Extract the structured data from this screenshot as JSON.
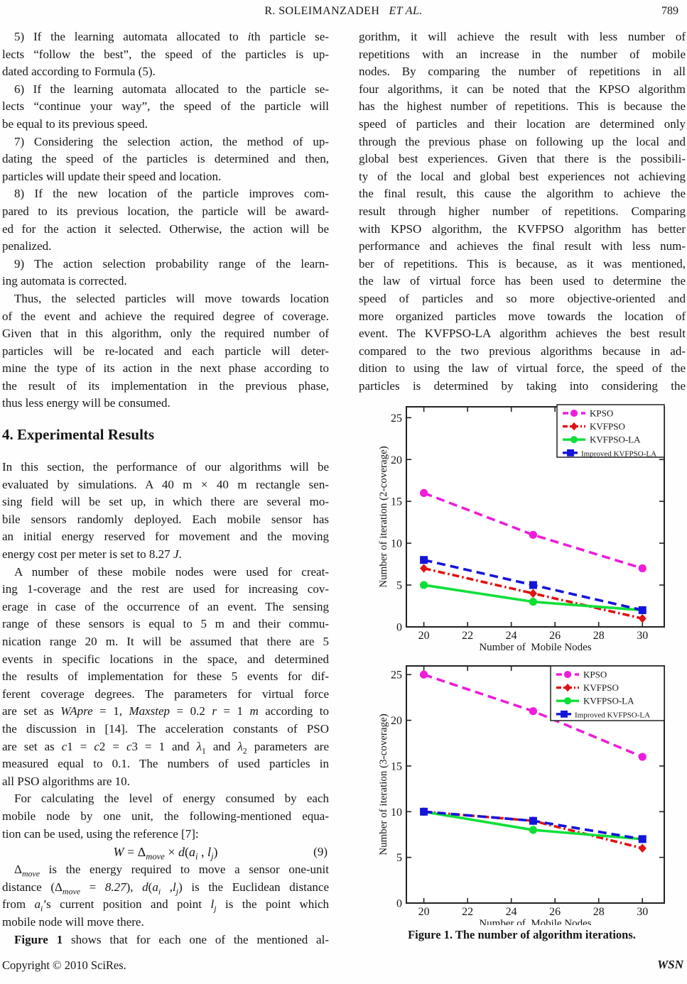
{
  "header": {
    "authors": "R. SOLEIMANZADEH",
    "et_al": "ET  AL.",
    "page_number": "789"
  },
  "footer": {
    "copyright": "Copyright © 2010 SciRes.",
    "journal": "WSN"
  },
  "figure": {
    "caption": "Figure 1. The number of algorithm iterations."
  },
  "left_column": {
    "blocks": [
      {
        "type": "paragraph",
        "indent": true,
        "flush": false,
        "lines": [
          "5) If the learning automata allocated to <i>i</i>th particle se-",
          "lects “follow the best”, the speed of the particles is up-",
          "dated according to Formula (5)."
        ]
      },
      {
        "type": "paragraph",
        "indent": true,
        "flush": false,
        "lines": [
          "6) If the learning automata allocated to the particle se-",
          "lects “continue your way”, the speed of the particle will",
          "be equal to its previous speed."
        ]
      },
      {
        "type": "paragraph",
        "indent": true,
        "flush": false,
        "lines": [
          "7) Considering the selection action, the method of up-",
          "dating the speed of the particles is determined and then,",
          "particles will update their speed and location."
        ]
      },
      {
        "type": "paragraph",
        "indent": true,
        "flush": false,
        "lines": [
          "8) If the new location of the particle improves com-",
          "pared to its previous location, the particle will be award-",
          "ed for the action it selected. Otherwise, the action will be",
          "penalized."
        ]
      },
      {
        "type": "paragraph",
        "indent": true,
        "flush": false,
        "lines": [
          "9) The action selection probability range of the learn-",
          "ing automata is corrected."
        ]
      },
      {
        "type": "paragraph",
        "indent": true,
        "flush": false,
        "lines": [
          "Thus, the selected particles will move towards location",
          "of the event and achieve the required degree of coverage.",
          "Given that in this algorithm, only the required number of",
          "particles will be re-located and each particle will deter-",
          "mine the type of its action in the next phase according to",
          "the result of its implementation in the previous phase,",
          "thus less energy will be consumed."
        ]
      },
      {
        "type": "heading",
        "text": "4. Experimental Results"
      },
      {
        "type": "paragraph",
        "indent": false,
        "flush": false,
        "lines": [
          "In this section, the performance of our algorithms will be",
          "evaluated by simulations. A 40 m × 40 m rectangle sen-",
          "sing field will be set up, in which there are several mo-",
          "bile sensors randomly deployed. Each mobile sensor has",
          "an initial energy reserved for movement and the moving",
          "energy cost per meter is set to 8.27 <i>J</i>."
        ]
      },
      {
        "type": "paragraph",
        "indent": true,
        "flush": false,
        "lines": [
          "A number of these mobile nodes were used for creat-",
          "ing 1-coverage and the rest are used for increasing cov-",
          "erage in case of the occurrence of an event. The sensing",
          "range of these sensors is equal to 5 m and their commu-",
          "nication range 20 m. It will be assumed that there are 5",
          "events in specific locations in the space, and determined",
          "the results of implementation for these 5 events for dif-",
          "ferent coverage degrees. The parameters for virtual force",
          "are set as <i>WApre</i> = 1, <i>Maxstep</i> = 0.2 <i>r</i> = 1 <i>m</i> according to",
          "the discussion in [14]. The acceleration constants of PSO",
          "are set as <i>c</i>1 = <i>c</i>2 = <i>c</i>3 = 1 and <i>λ</i><sub>1</sub> and <i>λ</i><sub>2</sub> parameters are",
          "measured equal to 0.1. The numbers of used particles in",
          "all PSO algorithms are 10."
        ]
      },
      {
        "type": "paragraph",
        "indent": true,
        "flush": false,
        "lines": [
          "For calculating the level of energy consumed by each",
          "mobile node by one unit, the following-mentioned equa-",
          "tion can be used, using the reference [7]:"
        ]
      },
      {
        "type": "formula",
        "html": "<i>W</i> = Δ<sub><i>move</i></sub> × <i>d</i>(<i>a<sub>i</sub></i> , <i>l<sub>j</sub></i>)",
        "number": "(9)"
      },
      {
        "type": "paragraph",
        "indent": true,
        "flush": false,
        "lines": [
          "Δ<sub><i>move</i></sub> is the energy required to move a sensor one-unit",
          "distance (Δ<sub><i>move</i></sub> = <i>8.27</i>), <i>d</i>(<i>a<sub>i</sub></i> ,<i>l<sub>j</sub></i>) is the Euclidean distance",
          "from <i>a<sub>i</sub></i>’s current position and point <i>l<sub>j</sub></i> is the point which",
          "mobile node will move there."
        ]
      },
      {
        "type": "paragraph",
        "indent": true,
        "flush": true,
        "lines": [
          "<b>Figure 1</b> shows that for each one of the mentioned al-"
        ]
      }
    ]
  },
  "right_column": {
    "blocks": [
      {
        "type": "paragraph",
        "indent": false,
        "flush": true,
        "lines": [
          "gorithm, it will achieve the result with less number of",
          "repetitions with an increase in the number of mobile",
          "nodes. By comparing the number of repetitions in all",
          "four algorithms, it can be noted that the KPSO algorithm",
          "has the highest number of repetitions. This is because the",
          "speed of particles and their location are determined only",
          "through the previous phase on following up the local and",
          "global best experiences. Given that there is the possibili-",
          "ty of the local and global best experiences not achieving",
          "the final result, this cause the algorithm to achieve the",
          "result through higher number of repetitions. Comparing",
          "with KPSO algorithm, the KVFPSO algorithm has better",
          "performance and achieves the final result with less num-",
          "ber of repetitions. This is because, as it was mentioned,",
          "the law of virtual force has been used to determine the",
          "speed of particles and so more objective-oriented and",
          "more organized particles move towards the location of",
          "event. The KVFPSO-LA algorithm achieves the best result",
          "compared to the two previous algorithms because in ad-",
          "dition to using the law of virtual force, the speed of the",
          "particles is determined by taking into considering the"
        ]
      }
    ]
  },
  "chart_data": [
    {
      "type": "line",
      "xlabel": "Number of  Mobile Nodes",
      "ylabel": "Number of iteration (2-coverage)",
      "x": [
        20,
        25,
        30
      ],
      "x_ticks": [
        20,
        22,
        24,
        26,
        28,
        30
      ],
      "y_ticks": [
        0,
        5,
        10,
        15,
        20,
        25
      ],
      "xlim": [
        19.2,
        31.0
      ],
      "ylim": [
        0,
        26.3
      ],
      "grid": false,
      "legend_position": "top-right",
      "series": [
        {
          "name": "KPSO",
          "values": [
            16,
            11,
            7
          ],
          "color": "#ee1cdb",
          "line": "dashed",
          "marker": "circle"
        },
        {
          "name": "KVFPSO",
          "values": [
            7,
            4,
            1
          ],
          "color": "#e01212",
          "line": "dashdot",
          "marker": "diamond"
        },
        {
          "name": "KVFPSO-LA",
          "values": [
            5,
            3,
            2
          ],
          "color": "#0ddf39",
          "line": "solid",
          "marker": "circle"
        },
        {
          "name": "Improved KVFPSO-LA",
          "values": [
            8,
            5,
            2
          ],
          "color": "#1414db",
          "line": "dashed",
          "marker": "square"
        }
      ]
    },
    {
      "type": "line",
      "xlabel": "Number of  Mobile Nodes",
      "ylabel": "Number of iteration (3-coverage)",
      "x": [
        20,
        25,
        30
      ],
      "x_ticks": [
        20,
        22,
        24,
        26,
        28,
        30
      ],
      "y_ticks": [
        0,
        5,
        10,
        15,
        20,
        25
      ],
      "xlim": [
        19.2,
        31.0
      ],
      "ylim": [
        0,
        25.95
      ],
      "grid": false,
      "legend_position": "top-right",
      "series": [
        {
          "name": "KPSO",
          "values": [
            25,
            21,
            16
          ],
          "color": "#ee1cdb",
          "line": "dashed",
          "marker": "circle"
        },
        {
          "name": "KVFPSO",
          "values": [
            10,
            9,
            6
          ],
          "color": "#e01212",
          "line": "dashdot",
          "marker": "diamond"
        },
        {
          "name": "KVFPSO-LA",
          "values": [
            10,
            8,
            7
          ],
          "color": "#0ddf39",
          "line": "solid",
          "marker": "circle"
        },
        {
          "name": "Improved KVFPSO-LA",
          "values": [
            10,
            9,
            7
          ],
          "color": "#1414db",
          "line": "dashed",
          "marker": "square"
        }
      ]
    }
  ]
}
